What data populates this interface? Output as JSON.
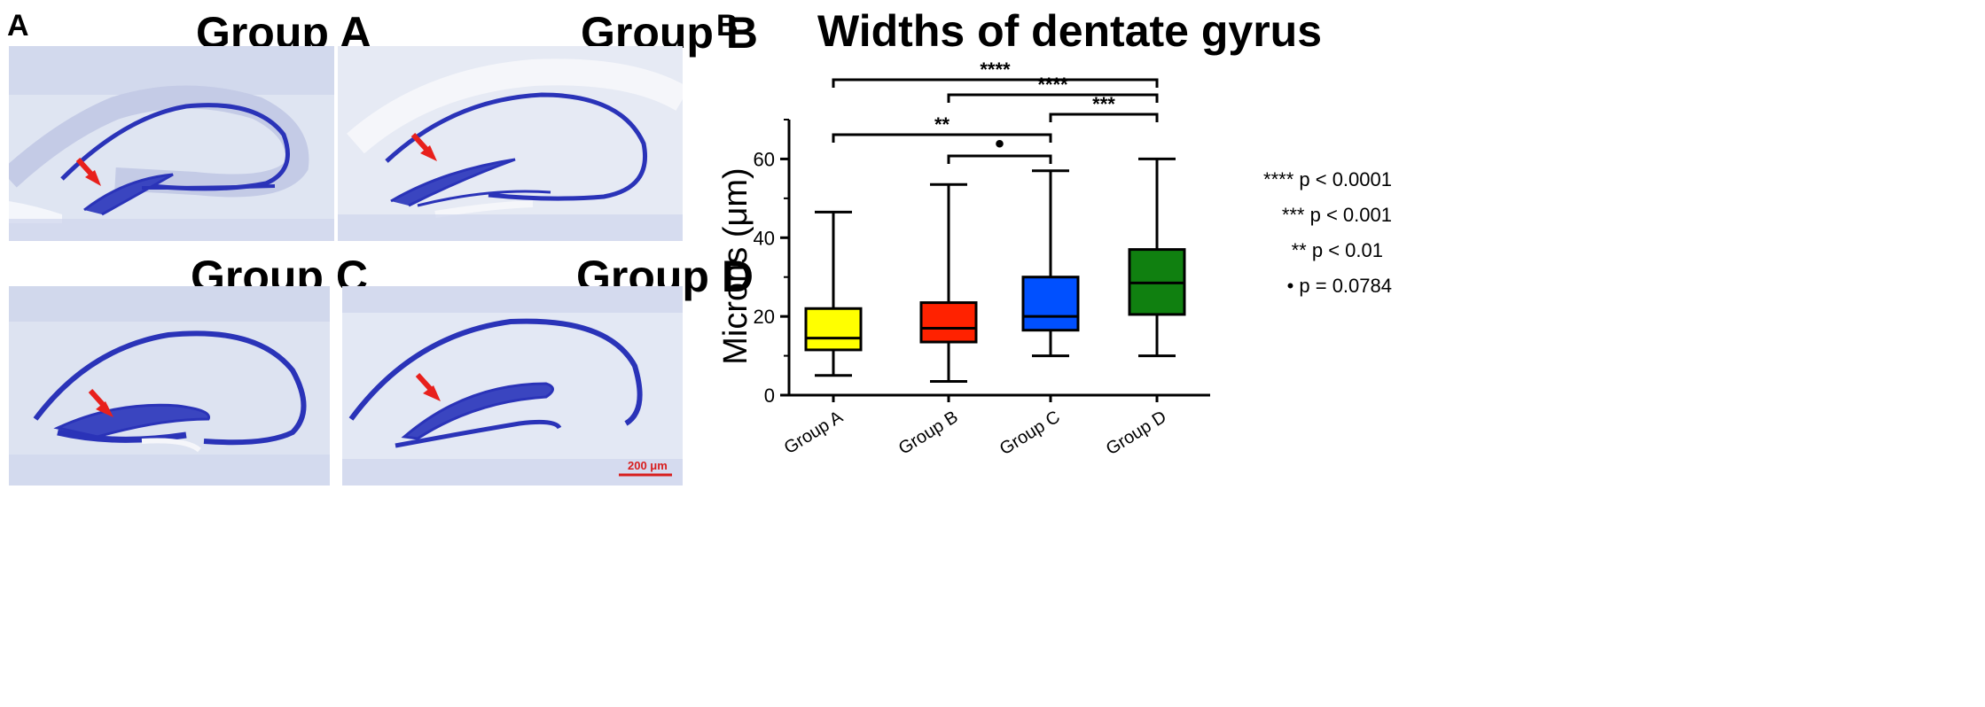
{
  "panel_a": {
    "label": "A",
    "images": [
      {
        "title": "Group A"
      },
      {
        "title": "Group B"
      },
      {
        "title": "Group C"
      },
      {
        "title": "Group D"
      }
    ],
    "scale_bar_label": "200 μm",
    "colors": {
      "stain": "#2a33b8",
      "background": "#dde3f1",
      "arrow": "#e8201c",
      "scale_bar": "#d81e1e"
    }
  },
  "panel_b": {
    "label": "B",
    "legend": [
      {
        "stars": "****",
        "text": "p <  0.0001"
      },
      {
        "stars": "***",
        "text": "p < 0.001"
      },
      {
        "stars": "**",
        "text": "p < 0.01"
      },
      {
        "stars": "•",
        "text": "p = 0.0784"
      }
    ]
  },
  "chart_data": {
    "type": "box",
    "title": "Widths of dentate gyrus",
    "ylabel": "Microns (μm)",
    "xlabel": "",
    "ylim": [
      0,
      70
    ],
    "yticks": [
      0,
      20,
      40,
      60
    ],
    "grid": false,
    "categories": [
      "Group A",
      "Group B",
      "Group C",
      "Group D"
    ],
    "boxes": [
      {
        "name": "Group A",
        "min": 5,
        "q1": 11.5,
        "median": 14.5,
        "q3": 22,
        "max": 46.5,
        "color": "#ffff00"
      },
      {
        "name": "Group B",
        "min": 3.5,
        "q1": 13.5,
        "median": 17,
        "q3": 23.5,
        "max": 53.5,
        "color": "#ff2200"
      },
      {
        "name": "Group C",
        "min": 10,
        "q1": 16.5,
        "median": 20,
        "q3": 30,
        "max": 57,
        "color": "#0050ff"
      },
      {
        "name": "Group D",
        "min": 10,
        "q1": 20.5,
        "median": 28.5,
        "q3": 37,
        "max": 60,
        "color": "#108010"
      }
    ],
    "comparisons": [
      {
        "from": 0,
        "to": 3,
        "label": "****"
      },
      {
        "from": 1,
        "to": 3,
        "label": "****"
      },
      {
        "from": 2,
        "to": 3,
        "label": "***"
      },
      {
        "from": 0,
        "to": 2,
        "label": "**"
      },
      {
        "from": 1,
        "to": 2,
        "label": "•"
      }
    ]
  }
}
